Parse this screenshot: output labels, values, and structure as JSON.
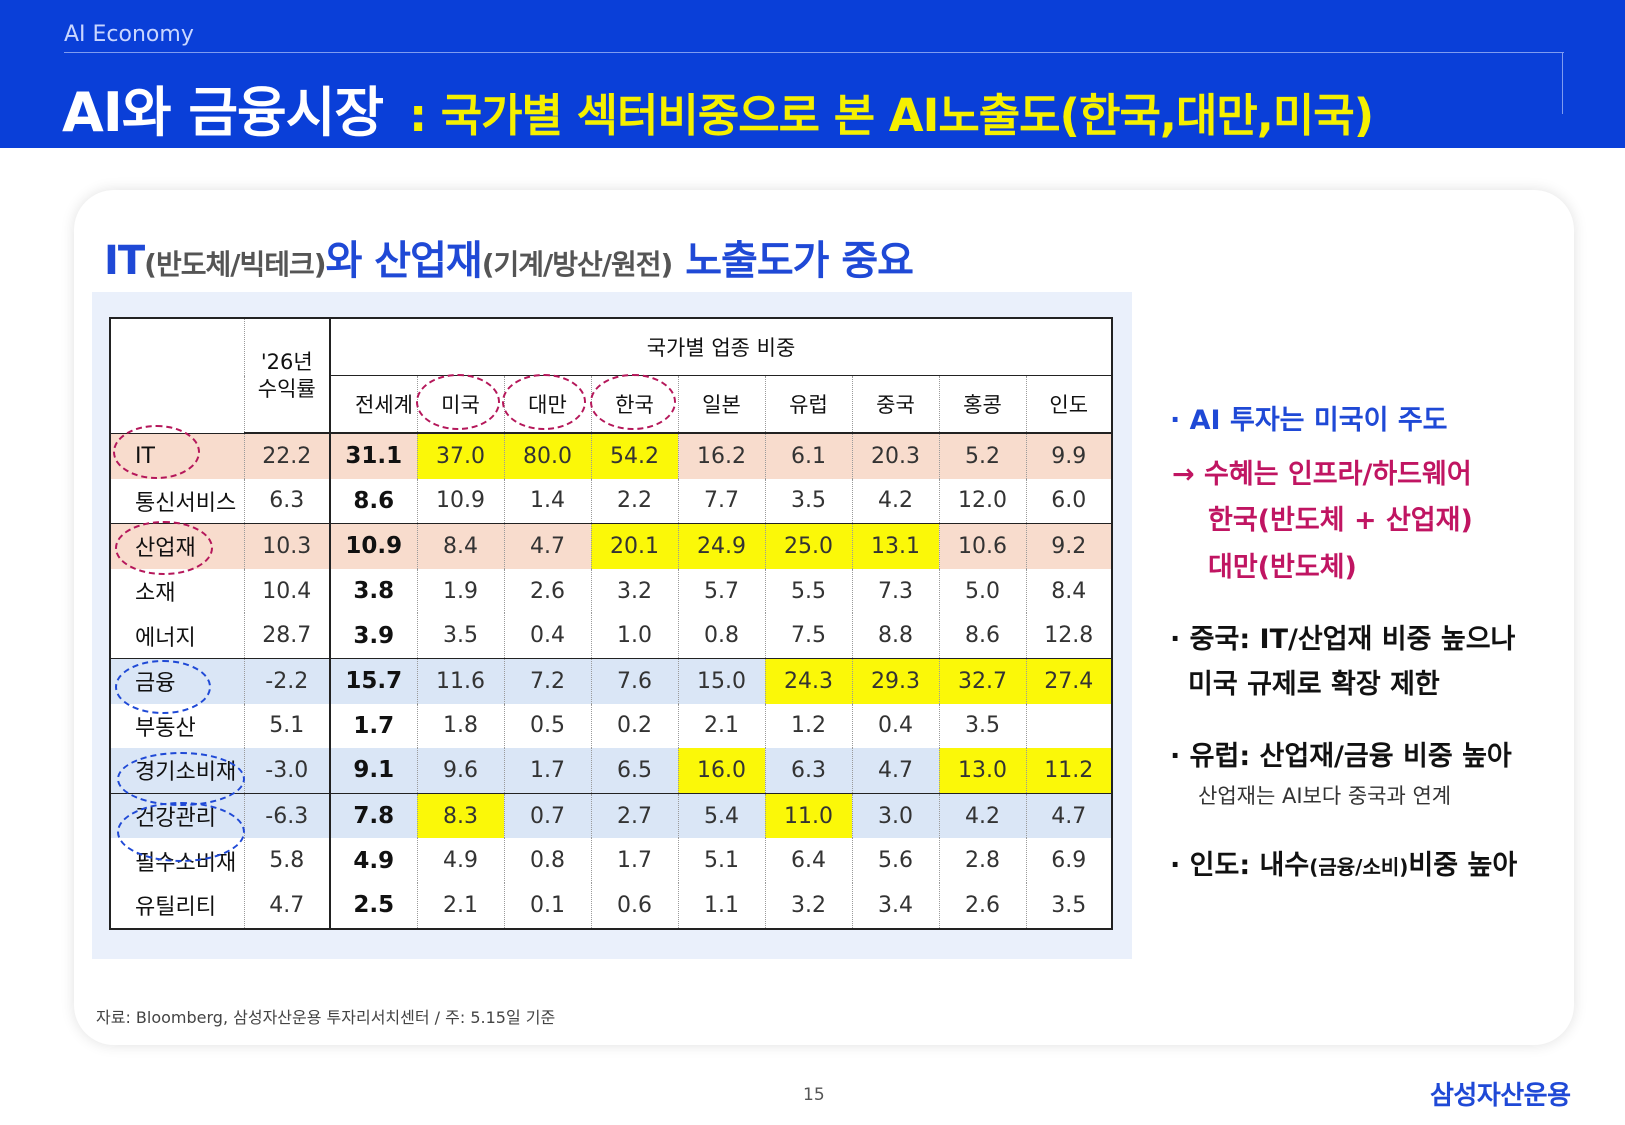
{
  "header": {
    "eyebrow": "AI Economy",
    "title_main": "AI와 금융시장",
    "title_sub": ": 국가별 섹터비중으로 본 AI노출도(한국,대만,미국)"
  },
  "headline": {
    "part1": "IT",
    "part1_paren": "(반도체/빅테크)",
    "part2": "와 산업재",
    "part2_paren": "(기계/방산/원전)",
    "part3": " 노출도가 중요"
  },
  "table": {
    "group_header": "국가별 업종 비중",
    "return_header_line1": "'26년",
    "return_header_line2": "수익률",
    "columns": [
      "전세계",
      "미국",
      "대만",
      "한국",
      "일본",
      "유럽",
      "중국",
      "홍콩",
      "인도"
    ],
    "rows": [
      {
        "sector": "IT",
        "ret": "22.2",
        "values": [
          "31.1",
          "37.0",
          "80.0",
          "54.2",
          "16.2",
          "6.1",
          "20.3",
          "5.2",
          "9.9"
        ]
      },
      {
        "sector": "통신서비스",
        "ret": "6.3",
        "values": [
          "8.6",
          "10.9",
          "1.4",
          "2.2",
          "7.7",
          "3.5",
          "4.2",
          "12.0",
          "6.0"
        ]
      },
      {
        "sector": "산업재",
        "ret": "10.3",
        "values": [
          "10.9",
          "8.4",
          "4.7",
          "20.1",
          "24.9",
          "25.0",
          "13.1",
          "10.6",
          "9.2"
        ]
      },
      {
        "sector": "소재",
        "ret": "10.4",
        "values": [
          "3.8",
          "1.9",
          "2.6",
          "3.2",
          "5.7",
          "5.5",
          "7.3",
          "5.0",
          "8.4"
        ]
      },
      {
        "sector": "에너지",
        "ret": "28.7",
        "values": [
          "3.9",
          "3.5",
          "0.4",
          "1.0",
          "0.8",
          "7.5",
          "8.8",
          "8.6",
          "12.8"
        ]
      },
      {
        "sector": "금융",
        "ret": "-2.2",
        "values": [
          "15.7",
          "11.6",
          "7.2",
          "7.6",
          "15.0",
          "24.3",
          "29.3",
          "32.7",
          "27.4"
        ]
      },
      {
        "sector": "부동산",
        "ret": "5.1",
        "values": [
          "1.7",
          "1.8",
          "0.5",
          "0.2",
          "2.1",
          "1.2",
          "0.4",
          "3.5",
          ""
        ]
      },
      {
        "sector": "경기소비재",
        "ret": "-3.0",
        "values": [
          "9.1",
          "9.6",
          "1.7",
          "6.5",
          "16.0",
          "6.3",
          "4.7",
          "13.0",
          "11.2"
        ]
      },
      {
        "sector": "건강관리",
        "ret": "-6.3",
        "values": [
          "7.8",
          "8.3",
          "0.7",
          "2.7",
          "5.4",
          "11.0",
          "3.0",
          "4.2",
          "4.7"
        ]
      },
      {
        "sector": "필수소비재",
        "ret": "5.8",
        "values": [
          "4.9",
          "4.9",
          "0.8",
          "1.7",
          "5.1",
          "6.4",
          "5.6",
          "2.8",
          "6.9"
        ]
      },
      {
        "sector": "유틸리티",
        "ret": "4.7",
        "values": [
          "2.5",
          "2.1",
          "0.1",
          "0.6",
          "1.1",
          "3.2",
          "3.4",
          "2.6",
          "3.5"
        ]
      }
    ]
  },
  "side": {
    "b1": "· AI 투자는 미국이 주도",
    "b1a": "→ 수혜는 인프라/하드웨어",
    "b1b": "한국(반도체 + 산업재)",
    "b1c": "대만(반도체)",
    "b2a": "· 중국: IT/산업재 비중 높으나",
    "b2b": "미국 규제로 확장 제한",
    "b3": "· 유럽: 산업재/금융 비중 높아",
    "b3s": "산업재는 AI보다 중국과 연계",
    "b4a": "· 인도: 내수",
    "b4p": "(금융/소비)",
    "b4b": "비중 높아"
  },
  "footer": {
    "source": "자료: Bloomberg, 삼성자산운용 투자리서치센터 / 주: 5.15일 기준",
    "page": "15",
    "logo": "삼성자산운용"
  },
  "colors": {
    "header_blue": "#0a3fd8",
    "title_yellow": "#f5f000",
    "highlight_yellow": "#fbf808",
    "row_orange": "#f8dccd",
    "row_blue": "#dae6f6",
    "accent_red": "#c01562"
  }
}
